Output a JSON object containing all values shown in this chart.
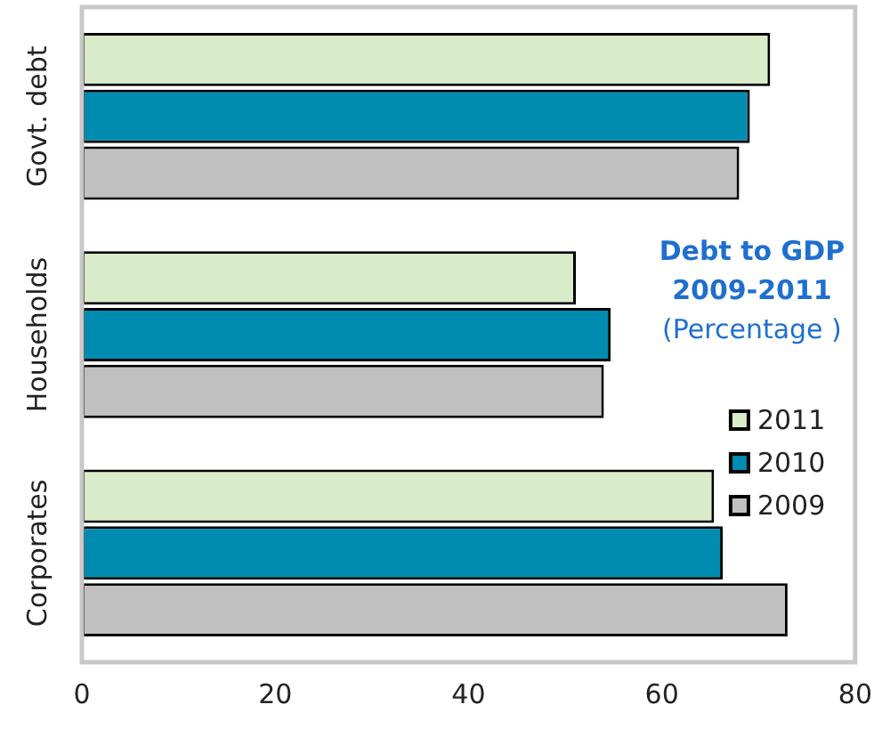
{
  "chart_data": {
    "type": "bar",
    "orientation": "horizontal",
    "title": "Debt to GDP 2009-2011",
    "subtitle": "(Percentage )",
    "categories": [
      "Govt. debt",
      "Households",
      "Corporates"
    ],
    "series": [
      {
        "name": "2011",
        "color": "#d9ecc9",
        "values": [
          71.2,
          51.1,
          65.4
        ]
      },
      {
        "name": "2010",
        "color": "#008bb0",
        "values": [
          69.1,
          54.7,
          66.3
        ]
      },
      {
        "name": "2009",
        "color": "#c0c0c0",
        "values": [
          68.0,
          54.0,
          73.0
        ]
      }
    ],
    "xlim": [
      0,
      80
    ],
    "xticks": [
      0,
      20,
      40,
      60,
      80
    ],
    "grid": false,
    "legend": "right"
  }
}
